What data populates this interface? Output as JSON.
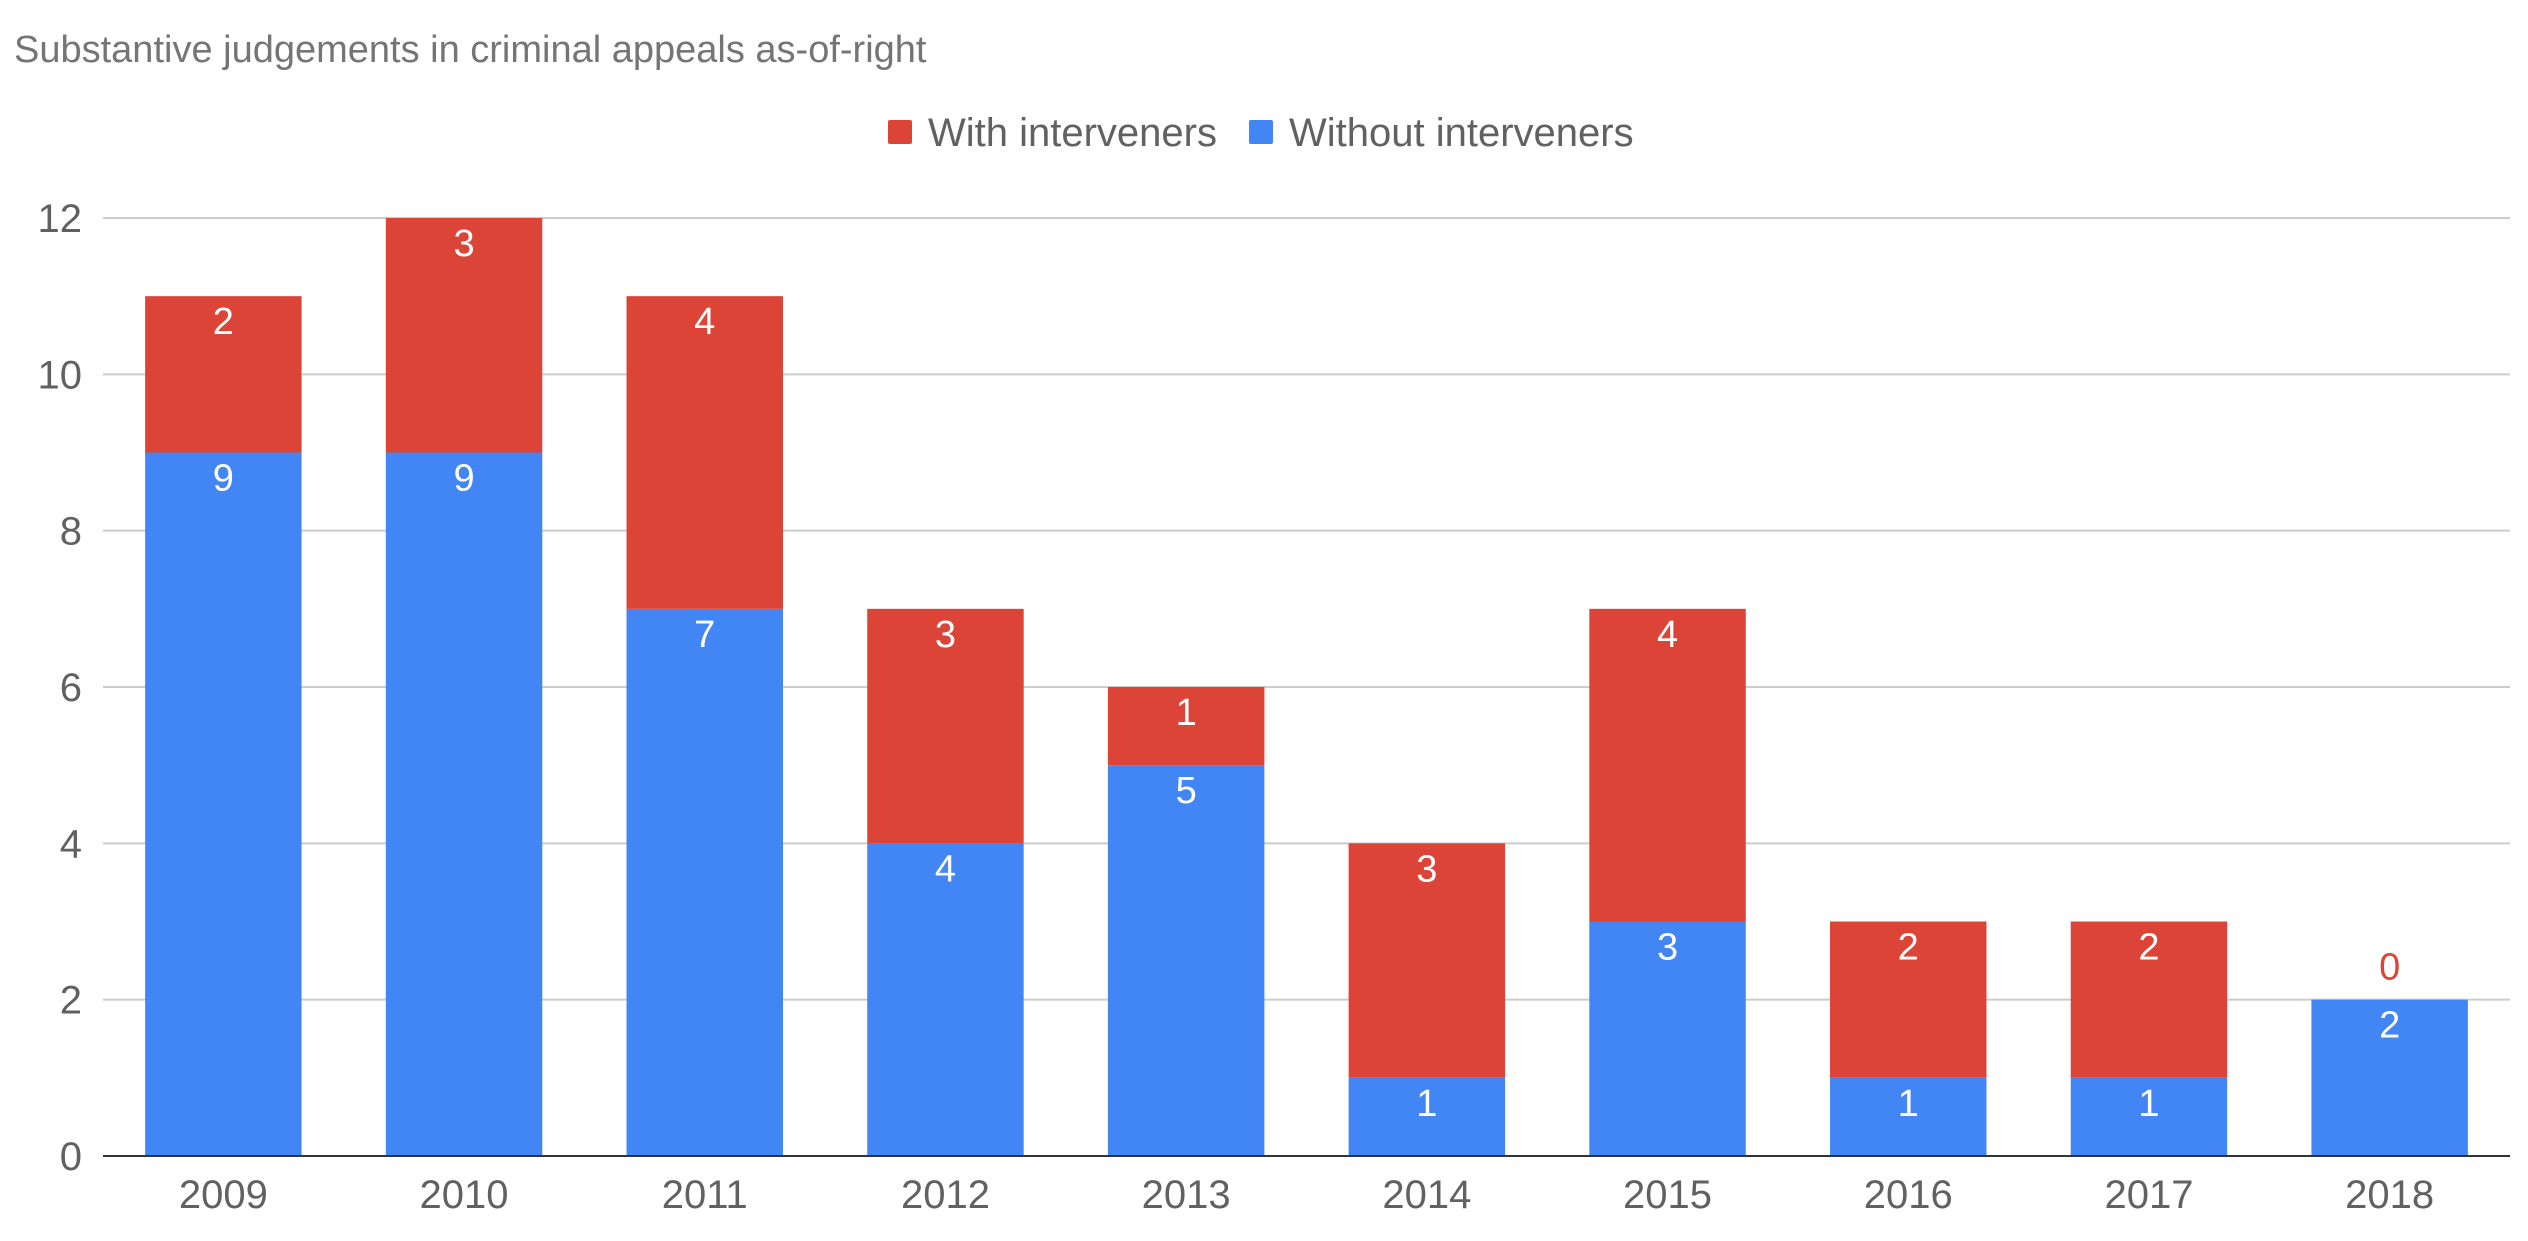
{
  "chart_data": {
    "type": "bar",
    "stacked": true,
    "title": "Substantive judgements in criminal appeals as-of-right",
    "xlabel": "",
    "ylabel": "",
    "categories": [
      "2009",
      "2010",
      "2011",
      "2012",
      "2013",
      "2014",
      "2015",
      "2016",
      "2017",
      "2018"
    ],
    "series": [
      {
        "name": "Without interveners",
        "color": "#4285f4",
        "values": [
          9,
          9,
          7,
          4,
          5,
          1,
          3,
          1,
          1,
          2
        ]
      },
      {
        "name": "With interveners",
        "color": "#db4437",
        "values": [
          2,
          3,
          4,
          3,
          1,
          3,
          4,
          2,
          2,
          0
        ]
      }
    ],
    "legend_order": [
      "With interveners",
      "Without interveners"
    ],
    "ylim": [
      0,
      12
    ],
    "yticks": [
      "0",
      "2",
      "4",
      "6",
      "8",
      "10",
      "12"
    ],
    "grid": true,
    "legend_position": "top-center",
    "data_labels": true
  }
}
